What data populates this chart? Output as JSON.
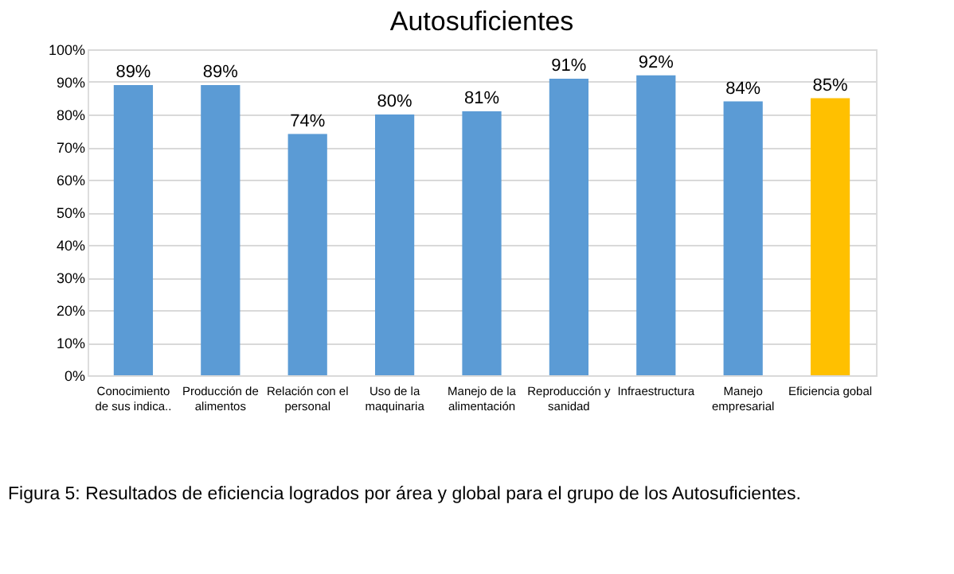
{
  "chart_data": {
    "type": "bar",
    "title": "Autosuficientes",
    "categories": [
      "Conocimiento\nde sus indica..",
      "Producción de\nalimentos",
      "Relación con el\npersonal",
      "Uso de la\nmaquinaria",
      "Manejo de la\nalimentación",
      "Reproducción y\nsanidad",
      "Infraestructura",
      "Manejo\nempresarial",
      "Eficiencia gobal"
    ],
    "values": [
      89,
      89,
      74,
      80,
      81,
      91,
      92,
      84,
      85
    ],
    "colors": [
      "#5b9bd5",
      "#5b9bd5",
      "#5b9bd5",
      "#5b9bd5",
      "#5b9bd5",
      "#5b9bd5",
      "#5b9bd5",
      "#5b9bd5",
      "#ffc000"
    ],
    "ylim": [
      0,
      100
    ],
    "yticks": [
      {
        "value": 0,
        "label": "0%"
      },
      {
        "value": 10,
        "label": "10%"
      },
      {
        "value": 20,
        "label": "20%"
      },
      {
        "value": 30,
        "label": "30%"
      },
      {
        "value": 40,
        "label": "40%"
      },
      {
        "value": 50,
        "label": "50%"
      },
      {
        "value": 60,
        "label": "60%"
      },
      {
        "value": 70,
        "label": "70%"
      },
      {
        "value": 80,
        "label": "80%"
      },
      {
        "value": 90,
        "label": "90%"
      },
      {
        "value": 100,
        "label": "100%"
      }
    ],
    "value_labels": [
      "89%",
      "89%",
      "74%",
      "80%",
      "81%",
      "91%",
      "92%",
      "84%",
      "85%"
    ],
    "grid": "y",
    "annotations": [
      "Figura 5: Resultados de eficiencia logrados por área y global para el grupo de los Autosuficientes."
    ]
  }
}
